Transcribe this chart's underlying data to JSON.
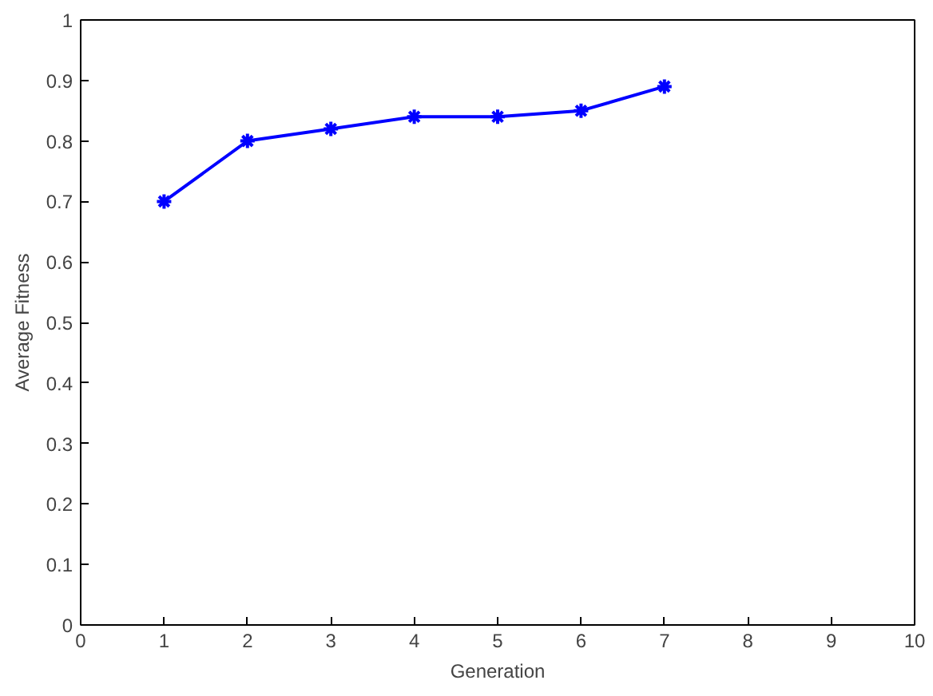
{
  "chart_data": {
    "type": "line",
    "xlabel": "Generation",
    "ylabel": "Average Fitness",
    "x": [
      1,
      2,
      3,
      4,
      5,
      6,
      7
    ],
    "series": [
      {
        "color": "#0000ff",
        "values": [
          0.7,
          0.8,
          0.82,
          0.84,
          0.84,
          0.85,
          0.89
        ]
      }
    ],
    "xlim": [
      0,
      10
    ],
    "xticks": [
      0,
      1,
      2,
      3,
      4,
      5,
      6,
      7,
      8,
      9,
      10
    ],
    "ylim": [
      0,
      1
    ],
    "yticks": [
      0,
      0.1,
      0.2,
      0.3,
      0.4,
      0.5,
      0.6,
      0.7,
      0.8,
      0.9,
      1
    ],
    "grid": false,
    "marker": "cross",
    "line_style": "solid"
  }
}
